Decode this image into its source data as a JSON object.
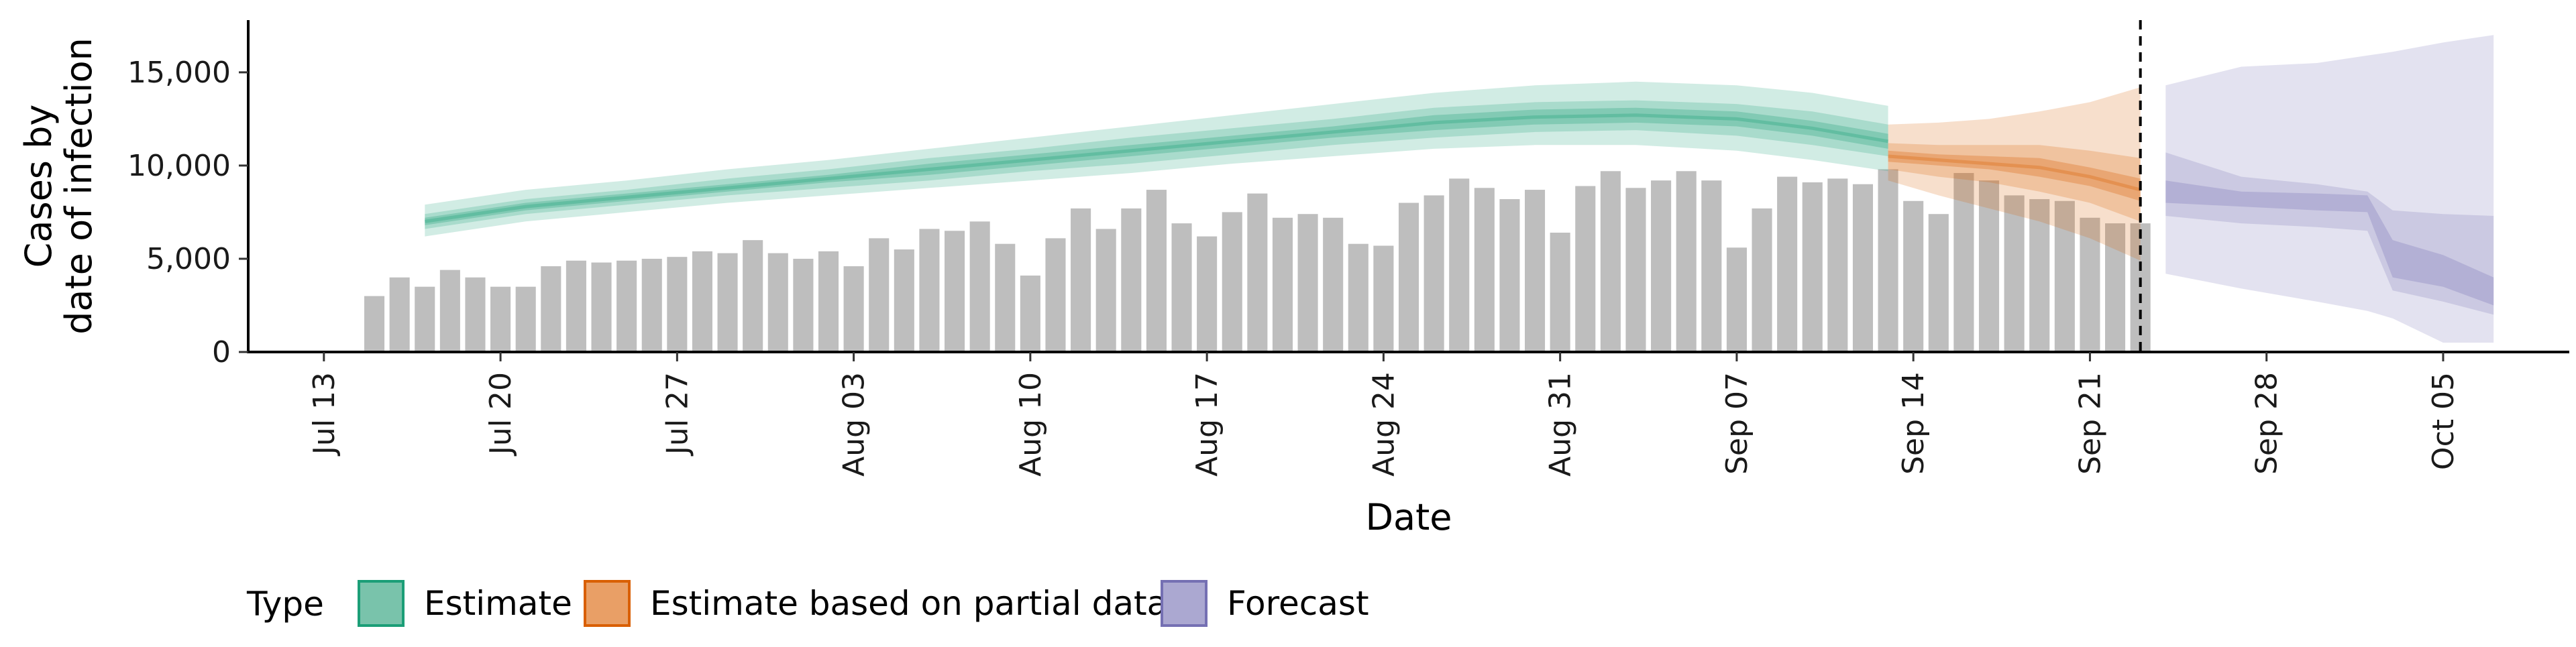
{
  "chart_data": {
    "type": "bar",
    "xlabel": "Date",
    "ylabel": [
      "Cases by",
      "date of infection"
    ],
    "ylim": [
      0,
      17800
    ],
    "y_ticks": [
      0,
      5000,
      10000,
      15000
    ],
    "y_tick_labels": [
      "0",
      "5,000",
      "10,000",
      "15,000"
    ],
    "x_range": [
      "2020-07-10",
      "2020-10-10"
    ],
    "x_ticks": [
      "2020-07-13",
      "2020-07-20",
      "2020-07-27",
      "2020-08-03",
      "2020-08-10",
      "2020-08-17",
      "2020-08-24",
      "2020-08-31",
      "2020-09-07",
      "2020-09-14",
      "2020-09-21",
      "2020-09-28",
      "2020-10-05"
    ],
    "x_tick_labels": [
      "Jul 13",
      "Jul 20",
      "Jul 27",
      "Aug 03",
      "Aug 10",
      "Aug 17",
      "Aug 24",
      "Aug 31",
      "Sep 07",
      "Sep 14",
      "Sep 21",
      "Sep 28",
      "Oct 05"
    ],
    "grid": false,
    "forecast_marker_date": "2020-09-23",
    "bars": {
      "color": "#bebebe",
      "start_date": "2020-07-15",
      "values": [
        3000,
        4000,
        3500,
        4400,
        4000,
        3500,
        3500,
        4600,
        4900,
        4800,
        4900,
        5000,
        5100,
        5400,
        5300,
        6000,
        5300,
        5000,
        5400,
        4600,
        6100,
        5500,
        6600,
        6500,
        7000,
        5800,
        4100,
        6100,
        7700,
        6600,
        7700,
        8700,
        6900,
        6200,
        7500,
        8500,
        7200,
        7400,
        7200,
        5800,
        5700,
        8000,
        8400,
        9300,
        8800,
        8200,
        8700,
        6400,
        8900,
        9700,
        8800,
        9200,
        9700,
        9200,
        5600,
        7700,
        9400,
        9100,
        9300,
        9000,
        9800,
        8100,
        7400,
        9600,
        9200,
        8400,
        8200,
        8100,
        7200,
        6900,
        6900
      ]
    },
    "series": [
      {
        "name": "Estimate",
        "color": "#1b9e77",
        "dates": [
          "2020-07-17",
          "2020-07-21",
          "2020-07-25",
          "2020-07-29",
          "2020-08-02",
          "2020-08-06",
          "2020-08-10",
          "2020-08-14",
          "2020-08-18",
          "2020-08-22",
          "2020-08-26",
          "2020-08-30",
          "2020-09-03",
          "2020-09-07",
          "2020-09-10",
          "2020-09-13"
        ],
        "median": [
          7000,
          7800,
          8300,
          8800,
          9300,
          9800,
          10300,
          10800,
          11300,
          11800,
          12300,
          12600,
          12700,
          12500,
          12000,
          11300
        ],
        "inner_lower": [
          6800,
          7600,
          8100,
          8600,
          9100,
          9500,
          10000,
          10500,
          11000,
          11500,
          11900,
          12200,
          12300,
          12100,
          11600,
          10900
        ],
        "inner_upper": [
          7200,
          8000,
          8500,
          9000,
          9500,
          10100,
          10600,
          11100,
          11600,
          12100,
          12700,
          13000,
          13100,
          12900,
          12400,
          11700
        ],
        "mid_lower": [
          6600,
          7400,
          7900,
          8400,
          8800,
          9200,
          9700,
          10100,
          10600,
          11100,
          11500,
          11800,
          11900,
          11600,
          11100,
          10500
        ],
        "mid_upper": [
          7400,
          8200,
          8700,
          9300,
          9800,
          10400,
          10900,
          11500,
          12000,
          12500,
          13100,
          13400,
          13500,
          13300,
          12900,
          12200
        ],
        "outer_lower": [
          6200,
          7000,
          7500,
          8000,
          8400,
          8800,
          9200,
          9600,
          10100,
          10500,
          10900,
          11100,
          11100,
          10800,
          10300,
          9700
        ],
        "outer_upper": [
          7900,
          8700,
          9200,
          9800,
          10300,
          10900,
          11500,
          12100,
          12700,
          13300,
          13900,
          14300,
          14500,
          14300,
          13900,
          13200
        ]
      },
      {
        "name": "Estimate based on partial data",
        "color": "#d95f02",
        "dates": [
          "2020-09-13",
          "2020-09-15",
          "2020-09-17",
          "2020-09-19",
          "2020-09-21",
          "2020-09-23"
        ],
        "median": [
          10500,
          10300,
          10100,
          9900,
          9400,
          8700
        ],
        "inner_lower": [
          10200,
          10000,
          9800,
          9400,
          8900,
          8100
        ],
        "inner_upper": [
          10800,
          10600,
          10500,
          10400,
          9900,
          9300
        ],
        "mid_lower": [
          9800,
          9400,
          9100,
          8600,
          8000,
          7000
        ],
        "mid_upper": [
          11200,
          11100,
          11100,
          11100,
          10800,
          10400
        ],
        "outer_lower": [
          9200,
          8400,
          7700,
          7000,
          6100,
          4900
        ],
        "outer_upper": [
          12200,
          12300,
          12500,
          12900,
          13400,
          14200
        ]
      },
      {
        "name": "Forecast",
        "color": "#7570b3",
        "dates": [
          "2020-09-24",
          "2020-09-27",
          "2020-09-30",
          "2020-10-02",
          "2020-10-03",
          "2020-10-05",
          "2020-10-07"
        ],
        "inner_lower": [
          8000,
          7800,
          7600,
          7500,
          4000,
          3500,
          2500
        ],
        "inner_upper": [
          9200,
          8600,
          8500,
          8400,
          6000,
          5200,
          4000
        ],
        "mid_lower": [
          7300,
          6900,
          6700,
          6500,
          3300,
          2700,
          2000
        ],
        "mid_upper": [
          10700,
          9400,
          9000,
          8600,
          7600,
          7400,
          7300
        ],
        "outer_lower": [
          4200,
          3400,
          2700,
          2200,
          1800,
          500,
          500
        ],
        "outer_upper": [
          14300,
          15300,
          15500,
          15900,
          16100,
          16600,
          17000
        ]
      }
    ],
    "legend": {
      "title": "Type",
      "position": "bottom-left",
      "entries": [
        {
          "label": "Estimate",
          "fill": "#79c3ab",
          "stroke": "#1b9e77"
        },
        {
          "label": "Estimate based on partial data",
          "fill": "#e99f66",
          "stroke": "#d95f02"
        },
        {
          "label": "Forecast",
          "fill": "#aba8d1",
          "stroke": "#7570b3"
        }
      ]
    }
  }
}
